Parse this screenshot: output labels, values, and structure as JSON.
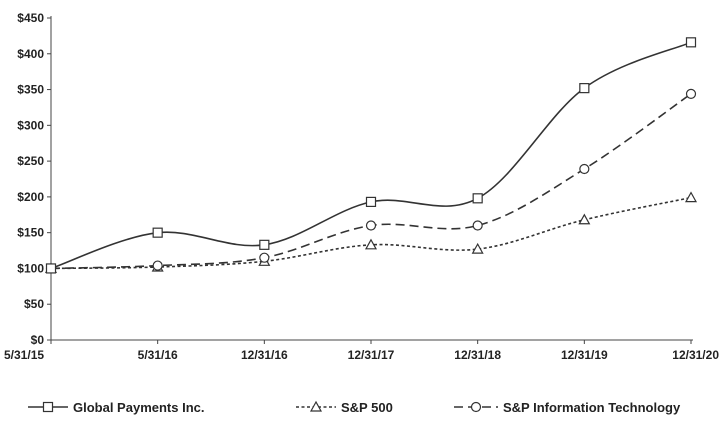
{
  "chart_data": {
    "type": "line",
    "categories": [
      "5/31/15",
      "5/31/16",
      "12/31/16",
      "12/31/17",
      "12/31/18",
      "12/31/19",
      "12/31/20"
    ],
    "ylim": [
      0,
      450
    ],
    "yticks": [
      0,
      50,
      100,
      150,
      200,
      250,
      300,
      350,
      400,
      450
    ],
    "ytick_labels": [
      "$0",
      "$50",
      "$100",
      "$150",
      "$200",
      "$250",
      "$300",
      "$350",
      "$400",
      "$450"
    ],
    "grid": false,
    "legend_position": "bottom",
    "series": [
      {
        "name": "Global Payments Inc.",
        "values": [
          100,
          150,
          133,
          193,
          198,
          352,
          416
        ],
        "marker": "square",
        "dash": "solid"
      },
      {
        "name": "S&P 500",
        "values": [
          100,
          102,
          110,
          133,
          127,
          168,
          199
        ],
        "marker": "triangle",
        "dash": "dotted"
      },
      {
        "name": "S&P Information Technology",
        "values": [
          100,
          104,
          115,
          160,
          160,
          239,
          344
        ],
        "marker": "circle",
        "dash": "dashed"
      }
    ],
    "colors": {
      "line": "#333333",
      "axis": "#444444",
      "marker_fill": "#ffffff"
    }
  }
}
